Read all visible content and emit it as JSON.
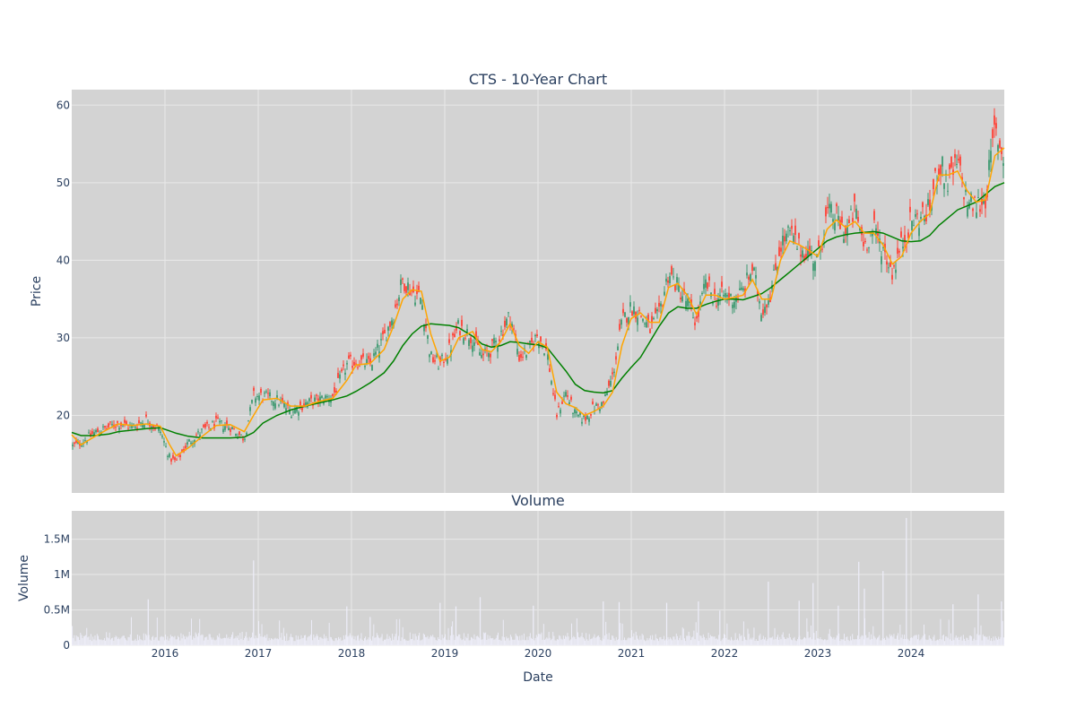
{
  "colors": {
    "background": "#ffffff",
    "plot_bg": "#d3d3d3",
    "grid": "#e8e8e8",
    "text": "#2a3f5f",
    "up": "#3d9970",
    "down": "#ff4136",
    "ma_short": "#ffa500",
    "ma_long": "#008000",
    "volume": "#eeeefa"
  },
  "chart_data": [
    {
      "type": "candlestick",
      "title": "CTS - 10-Year Chart",
      "ylabel": "Price",
      "xlabel": "",
      "ylim": [
        10,
        62
      ],
      "xlim": [
        2015.0,
        2025.0
      ],
      "yticks": [
        20,
        30,
        40,
        50,
        60
      ],
      "grid": true,
      "series": [
        {
          "kind": "price",
          "x": [
            2015.0,
            2015.1,
            2015.25,
            2015.4,
            2015.5,
            2015.65,
            2015.8,
            2015.95,
            2016.05,
            2016.12,
            2016.25,
            2016.4,
            2016.55,
            2016.7,
            2016.85,
            2016.95,
            2017.05,
            2017.2,
            2017.35,
            2017.5,
            2017.65,
            2017.8,
            2017.95,
            2018.05,
            2018.2,
            2018.35,
            2018.45,
            2018.55,
            2018.65,
            2018.75,
            2018.85,
            2018.95,
            2019.05,
            2019.15,
            2019.3,
            2019.4,
            2019.5,
            2019.6,
            2019.7,
            2019.8,
            2019.9,
            2020.0,
            2020.1,
            2020.2,
            2020.3,
            2020.4,
            2020.5,
            2020.6,
            2020.7,
            2020.8,
            2020.9,
            2021.0,
            2021.1,
            2021.2,
            2021.3,
            2021.4,
            2021.5,
            2021.6,
            2021.7,
            2021.8,
            2021.9,
            2022.0,
            2022.1,
            2022.2,
            2022.3,
            2022.4,
            2022.5,
            2022.6,
            2022.7,
            2022.8,
            2022.9,
            2023.0,
            2023.1,
            2023.2,
            2023.3,
            2023.4,
            2023.5,
            2023.6,
            2023.7,
            2023.8,
            2023.9,
            2024.0,
            2024.1,
            2024.2,
            2024.3,
            2024.4,
            2024.5,
            2024.6,
            2024.7,
            2024.8,
            2024.9,
            2025.0
          ],
          "values": [
            16,
            16.5,
            17.8,
            18.5,
            19,
            18.5,
            19.5,
            18,
            14.5,
            14,
            16.5,
            18,
            19,
            18.5,
            17,
            22.5,
            22.5,
            22,
            20.5,
            21.5,
            22,
            22.5,
            26.5,
            27,
            26.5,
            30,
            33,
            37.5,
            36,
            35,
            27.5,
            26.5,
            28.5,
            31.5,
            30,
            27.5,
            28.5,
            30.5,
            33,
            27.5,
            28.5,
            30.5,
            28,
            20,
            23,
            20,
            19.5,
            21,
            21.5,
            25,
            32,
            34,
            33,
            31,
            33,
            38.5,
            36.5,
            34.5,
            32,
            37,
            35,
            35.5,
            35,
            36,
            39,
            33.5,
            36,
            42,
            43.5,
            41.5,
            41,
            40,
            46,
            45.5,
            43.5,
            46.5,
            42,
            44,
            41.5,
            38.5,
            42,
            45,
            45.5,
            46.5,
            52.5,
            50,
            52.5,
            47.5,
            47,
            48,
            57,
            53
          ]
        },
        {
          "kind": "ma_short",
          "values": [
            17.5,
            16.2,
            17.3,
            18.3,
            18.9,
            18.7,
            18.9,
            18.6,
            16.2,
            14.8,
            15.8,
            17.3,
            18.7,
            18.8,
            17.9,
            20,
            22,
            22.2,
            21.2,
            21.2,
            21.8,
            22.2,
            24.5,
            26.5,
            26.7,
            28.5,
            31.5,
            35,
            36.2,
            36,
            30.5,
            27,
            27.5,
            30,
            30.8,
            28.5,
            28.2,
            29.5,
            31.8,
            29,
            28,
            29.5,
            28.8,
            23,
            21.5,
            21,
            20,
            20.5,
            21.2,
            23,
            29,
            32.5,
            33.2,
            32,
            32,
            36.5,
            37,
            35.5,
            33,
            35.5,
            35.5,
            35,
            35.2,
            35.5,
            37.5,
            35,
            35,
            40,
            42.5,
            42,
            41.3,
            40.5,
            44,
            45.2,
            44.2,
            45,
            43.5,
            43.5,
            42,
            39.5,
            40.5,
            43.5,
            45,
            46,
            51,
            51,
            51.5,
            49,
            47.5,
            47.8,
            53.5,
            54.5
          ]
        },
        {
          "kind": "ma_long",
          "values": [
            17.8,
            17.4,
            17.4,
            17.6,
            17.9,
            18.1,
            18.3,
            18.4,
            18,
            17.7,
            17.3,
            17.1,
            17.1,
            17.1,
            17.2,
            17.8,
            19,
            20,
            20.7,
            21.2,
            21.6,
            22,
            22.5,
            23.1,
            24.2,
            25.5,
            27,
            29,
            30.5,
            31.5,
            31.8,
            31.7,
            31.6,
            31.3,
            30.2,
            29.2,
            28.8,
            29,
            29.5,
            29.4,
            29.2,
            29.1,
            28.7,
            27.2,
            25.7,
            24,
            23.2,
            23,
            22.9,
            23.2,
            24.8,
            26.2,
            27.5,
            29.5,
            31.5,
            33.2,
            34,
            33.8,
            33.8,
            34.3,
            34.7,
            35,
            35,
            34.9,
            35.3,
            35.7,
            36.5,
            37.5,
            38.5,
            39.5,
            40.5,
            41.5,
            42.5,
            43,
            43.3,
            43.5,
            43.6,
            43.7,
            43.5,
            43,
            42.5,
            42.4,
            42.5,
            43.2,
            44.5,
            45.5,
            46.5,
            47,
            47.5,
            48.5,
            49.5,
            50
          ]
        }
      ]
    },
    {
      "type": "bar",
      "title": "Volume",
      "ylabel": "Volume",
      "xlabel": "Date",
      "ylim": [
        0,
        1900000
      ],
      "yticks": [
        0,
        500000,
        1000000,
        1500000
      ],
      "ytick_labels": [
        "0",
        "0.5M",
        "1M",
        "1.5M"
      ],
      "xticks": [
        2016,
        2017,
        2018,
        2019,
        2020,
        2021,
        2022,
        2023,
        2024
      ],
      "xtick_labels": [
        "2016",
        "2017",
        "2018",
        "2019",
        "2020",
        "2021",
        "2022",
        "2023",
        "2024"
      ],
      "grid": true,
      "baseline_range": [
        60000,
        200000
      ],
      "spikes": [
        {
          "x": 2015.82,
          "value": 650000
        },
        {
          "x": 2016.95,
          "value": 1200000
        },
        {
          "x": 2017.95,
          "value": 550000
        },
        {
          "x": 2018.2,
          "value": 400000
        },
        {
          "x": 2018.95,
          "value": 600000
        },
        {
          "x": 2019.12,
          "value": 550000
        },
        {
          "x": 2019.38,
          "value": 680000
        },
        {
          "x": 2019.95,
          "value": 560000
        },
        {
          "x": 2020.7,
          "value": 620000
        },
        {
          "x": 2020.87,
          "value": 610000
        },
        {
          "x": 2021.38,
          "value": 600000
        },
        {
          "x": 2021.72,
          "value": 620000
        },
        {
          "x": 2021.95,
          "value": 490000
        },
        {
          "x": 2022.47,
          "value": 900000
        },
        {
          "x": 2022.8,
          "value": 630000
        },
        {
          "x": 2022.95,
          "value": 880000
        },
        {
          "x": 2023.22,
          "value": 560000
        },
        {
          "x": 2023.44,
          "value": 1180000
        },
        {
          "x": 2023.5,
          "value": 800000
        },
        {
          "x": 2023.7,
          "value": 1050000
        },
        {
          "x": 2023.95,
          "value": 1800000
        },
        {
          "x": 2024.45,
          "value": 580000
        },
        {
          "x": 2024.72,
          "value": 720000
        },
        {
          "x": 2024.97,
          "value": 620000
        }
      ]
    }
  ]
}
